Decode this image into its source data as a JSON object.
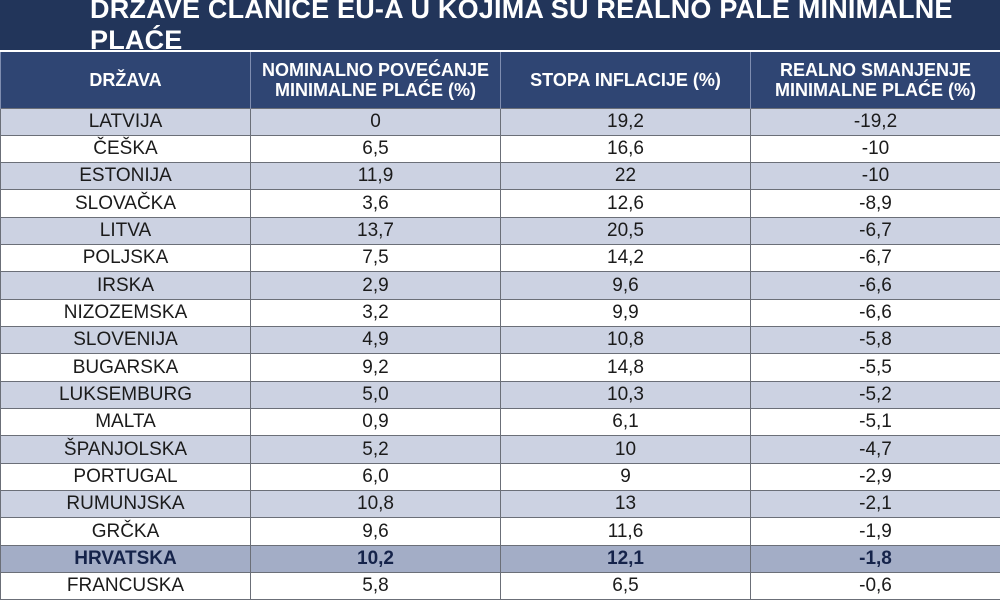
{
  "title": "DRŽAVE ČLANICE EU-A U KOJIMA SU REALNO PALE MINIMALNE PLAĆE",
  "chart_data": {
    "type": "table",
    "title": "DRŽAVE ČLANICE EU-A U KOJIMA SU REALNO PALE MINIMALNE PLAĆE",
    "columns": [
      "DRŽAVA",
      "NOMINALNO POVEĆANJE MINIMALNE PLAĆE (%)",
      "STOPA INFLACIJE (%)",
      "REALNO SMANJENJE MINIMALNE PLAĆE (%)"
    ],
    "rows": [
      [
        "LATVIJA",
        "0",
        "19,2",
        "-19,2"
      ],
      [
        "ČEŠKA",
        "6,5",
        "16,6",
        "-10"
      ],
      [
        "ESTONIJA",
        "11,9",
        "22",
        "-10"
      ],
      [
        "SLOVAČKA",
        "3,6",
        "12,6",
        "-8,9"
      ],
      [
        "LITVA",
        "13,7",
        "20,5",
        "-6,7"
      ],
      [
        "POLJSKA",
        "7,5",
        "14,2",
        "-6,7"
      ],
      [
        "IRSKA",
        "2,9",
        "9,6",
        "-6,6"
      ],
      [
        "NIZOZEMSKA",
        "3,2",
        "9,9",
        "-6,6"
      ],
      [
        "SLOVENIJA",
        "4,9",
        "10,8",
        "-5,8"
      ],
      [
        "BUGARSKA",
        "9,2",
        "14,8",
        "-5,5"
      ],
      [
        "LUKSEMBURG",
        "5,0",
        "10,3",
        "-5,2"
      ],
      [
        "MALTA",
        "0,9",
        "6,1",
        "-5,1"
      ],
      [
        "ŠPANJOLSKA",
        "5,2",
        "10",
        "-4,7"
      ],
      [
        "PORTUGAL",
        "6,0",
        "9",
        "-2,9"
      ],
      [
        "RUMUNJSKA",
        "10,8",
        "13",
        "-2,1"
      ],
      [
        "GRČKA",
        "9,6",
        "11,6",
        "-1,9"
      ],
      [
        "HRVATSKA",
        "10,2",
        "12,1",
        "-1,8"
      ],
      [
        "FRANCUSKA",
        "5,8",
        "6,5",
        "-0,6"
      ]
    ],
    "highlight_row": "HRVATSKA"
  },
  "colors": {
    "title_bg": "#22355a",
    "header_bg": "#2f4573",
    "stripe": "#ccd2e2",
    "highlight": "#a3adc6"
  }
}
